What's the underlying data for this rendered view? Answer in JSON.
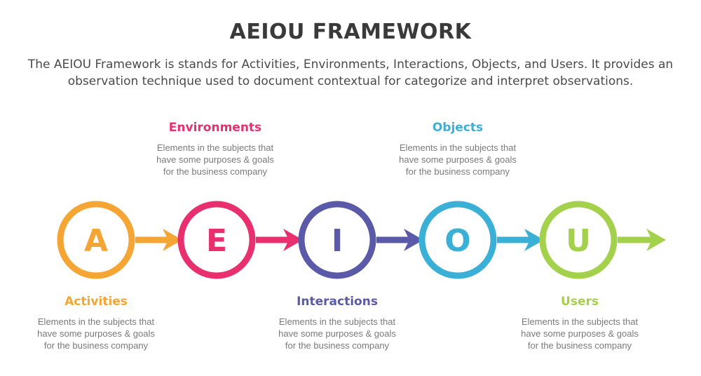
{
  "header": {
    "title": "AEIOU FRAMEWORK",
    "subtitle": "The AEIOU Framework is stands for Activities, Environments, Interactions, Objects, and Users. It provides an observation technique used to document contextual for categorize and interpret observations."
  },
  "steps": [
    {
      "letter": "A",
      "label": "Activities",
      "color": "#f5a533",
      "desc": "Elements in the subjects that\nhave  some purposes & goals\nfor the  business company"
    },
    {
      "letter": "E",
      "label": "Environments",
      "color": "#e8306e",
      "desc": "Elements in the subjects that\nhave  some purposes & goals\nfor the  business company"
    },
    {
      "letter": "I",
      "label": "Interactions",
      "color": "#5a5aa8",
      "desc": "Elements in the subjects that\nhave  some purposes & goals\nfor the  business company"
    },
    {
      "letter": "O",
      "label": "Objects",
      "color": "#3bb0d6",
      "desc": "Elements in the subjects that\nhave  some purposes & goals\nfor the  business company"
    },
    {
      "letter": "U",
      "label": "Users",
      "color": "#a4d14b",
      "desc": "Elements in the subjects that\nhave  some purposes & goals\nfor the  business company"
    }
  ]
}
